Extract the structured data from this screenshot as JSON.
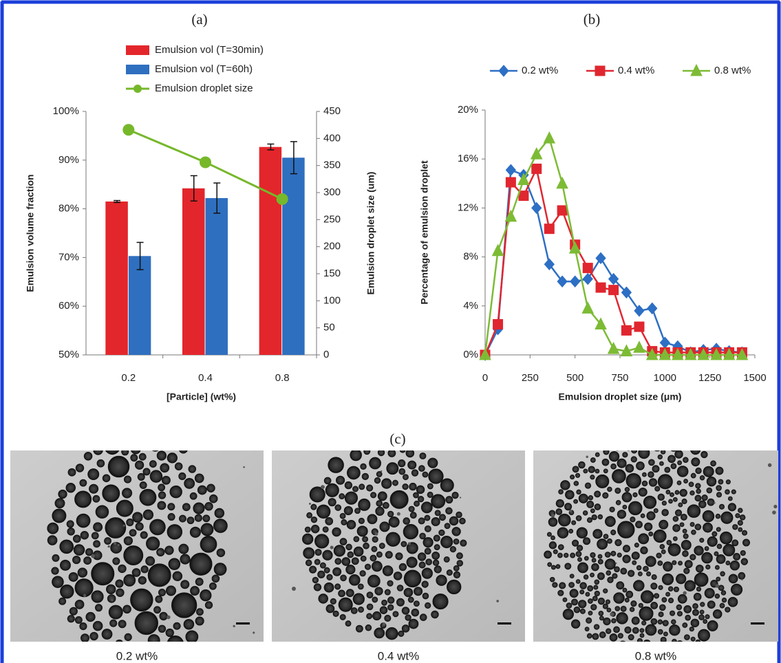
{
  "chart_data": [
    {
      "type": "bar",
      "title": "(a)",
      "x_label": "[Particle] (wt%)",
      "y_label": "Emulsion volume fraction",
      "y2_label": "Emulsion droplet size (um)",
      "categories": [
        "0.2",
        "0.4",
        "0.8"
      ],
      "series": [
        {
          "name": "Emulsion vol (T=30min)",
          "color": "#e3262b",
          "values": [
            81.5,
            84.2,
            92.7
          ],
          "errors": [
            0.2,
            2.6,
            0.6
          ]
        },
        {
          "name": "Emulsion vol (T=60h)",
          "color": "#2f6fbf",
          "values": [
            70.3,
            82.2,
            90.5
          ],
          "errors": [
            2.8,
            3.1,
            3.3
          ]
        },
        {
          "name": "Emulsion droplet size",
          "color": "#76b82a",
          "type": "line",
          "axis": "y2",
          "values": [
            416,
            356,
            288
          ]
        }
      ],
      "ylim": [
        50,
        100
      ],
      "yticks": [
        {
          "value": 50,
          "label": "50%"
        },
        {
          "value": 60,
          "label": "60%"
        },
        {
          "value": 70,
          "label": "70%"
        },
        {
          "value": 80,
          "label": "80%"
        },
        {
          "value": 90,
          "label": "90%"
        },
        {
          "value": 100,
          "label": "100%"
        }
      ],
      "y2lim": [
        0,
        450
      ],
      "y2ticks": [
        0,
        50,
        100,
        150,
        200,
        250,
        300,
        350,
        400,
        450
      ],
      "grid": false,
      "legend": "top"
    },
    {
      "type": "line",
      "title": "(b)",
      "x_label": "Emulsion droplet size (μm)",
      "y_label": "Percentage of emulsion droplet",
      "x": [
        0,
        71,
        143,
        214,
        286,
        357,
        429,
        500,
        571,
        643,
        714,
        786,
        857,
        929,
        1000,
        1071,
        1143,
        1214,
        1286,
        1357,
        1429
      ],
      "series": [
        {
          "name": "0.2 wt%",
          "color": "#2d6fc4",
          "marker": "diamond",
          "values": [
            0,
            2.1,
            15.1,
            14.7,
            12.0,
            7.4,
            6.0,
            6.0,
            6.2,
            7.9,
            6.2,
            5.1,
            3.6,
            3.8,
            1.0,
            0.7,
            0.2,
            0.4,
            0.5,
            0.3,
            0.2
          ]
        },
        {
          "name": "0.4 wt%",
          "color": "#e0262f",
          "marker": "square",
          "values": [
            0,
            2.5,
            14.1,
            13.0,
            15.2,
            10.3,
            11.8,
            9.0,
            7.1,
            5.5,
            5.3,
            2.0,
            2.3,
            0.3,
            0.2,
            0.2,
            0.2,
            0.2,
            0.2,
            0.2,
            0.2
          ]
        },
        {
          "name": "0.8 wt%",
          "color": "#7dbb35",
          "marker": "triangle",
          "values": [
            0,
            8.5,
            11.3,
            14.3,
            16.4,
            17.7,
            14.0,
            8.7,
            3.8,
            2.5,
            0.5,
            0.3,
            0.6,
            0,
            0,
            0,
            0,
            0,
            0,
            0,
            0
          ]
        }
      ],
      "xlim": [
        0,
        1500
      ],
      "xticks": [
        0,
        250,
        500,
        750,
        1000,
        1250,
        1500
      ],
      "ylim": [
        0,
        20
      ],
      "yticks": [
        {
          "value": 0,
          "label": "0%"
        },
        {
          "value": 4,
          "label": "4%"
        },
        {
          "value": 8,
          "label": "8%"
        },
        {
          "value": 12,
          "label": "12%"
        },
        {
          "value": 16,
          "label": "16%"
        },
        {
          "value": 20,
          "label": "20%"
        }
      ],
      "grid": false,
      "legend": "top"
    }
  ],
  "images": {
    "label": "(c)",
    "captions": [
      "0.2 wt%",
      "0.4 wt%",
      "0.8 wt%"
    ]
  }
}
